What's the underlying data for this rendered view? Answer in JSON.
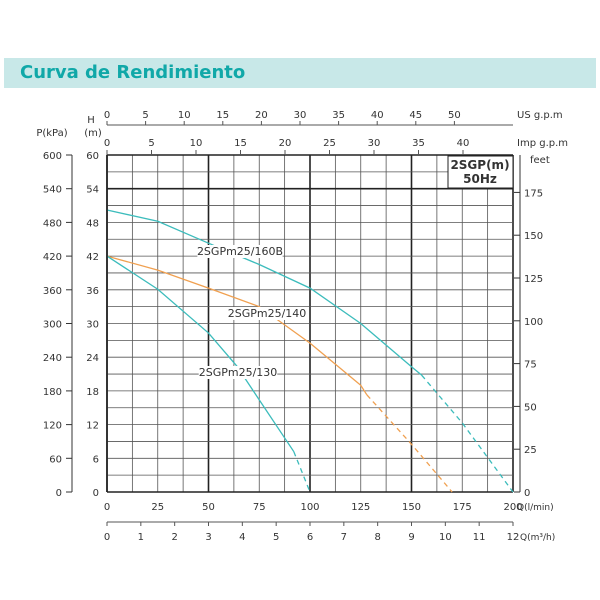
{
  "title": "Curva de Rendimiento",
  "chart_data": {
    "type": "line",
    "title": "Curva de Rendimiento",
    "model_box": [
      "2SGP(m)",
      "50Hz"
    ],
    "xlabel": "Q(l/min)",
    "xlabel2": "Q(m³/h)",
    "ylabel_left1": "P(kPa)",
    "ylabel_left2": [
      "H",
      "(m)"
    ],
    "ylabel_right": "feet",
    "top_axis1_label": "US  g.p.m",
    "top_axis2_label": "Imp  g.p.m",
    "xlim": [
      0,
      200
    ],
    "ylim": [
      0,
      60
    ],
    "x_ticks": [
      0,
      25,
      50,
      75,
      100,
      125,
      150,
      175,
      200
    ],
    "x2_ticks": [
      0,
      1,
      2,
      3,
      4,
      5,
      6,
      7,
      8,
      9,
      10,
      11,
      12
    ],
    "us_gpm_ticks": [
      "0",
      "5",
      "10",
      "15",
      "20",
      "30",
      "35",
      "40",
      "45",
      "50"
    ],
    "imp_gpm_ticks": [
      "0",
      "5",
      "10",
      "15",
      "20",
      "25",
      "30",
      "35",
      "40"
    ],
    "h_ticks": [
      0,
      6,
      12,
      18,
      24,
      30,
      36,
      42,
      48,
      54,
      60
    ],
    "p_ticks": [
      0,
      60,
      120,
      180,
      240,
      300,
      360,
      420,
      480,
      540,
      600
    ],
    "feet_ticks": [
      0,
      25,
      50,
      75,
      100,
      125,
      150,
      175
    ],
    "series": [
      {
        "name": "2SGPm25/160B",
        "color": "#3cbcbc",
        "points": [
          [
            0,
            50.2
          ],
          [
            25,
            48.2
          ],
          [
            50,
            44.3
          ],
          [
            75,
            40.5
          ],
          [
            100,
            36.3
          ],
          [
            125,
            30
          ],
          [
            150,
            22.3
          ],
          [
            155,
            20.8
          ]
        ],
        "dashed_points": [
          [
            155,
            20.8
          ],
          [
            175,
            12.3
          ],
          [
            200,
            0
          ]
        ]
      },
      {
        "name": "2SGPm25/140",
        "color": "#f0a050",
        "points": [
          [
            0,
            42
          ],
          [
            25,
            39.5
          ],
          [
            50,
            36.3
          ],
          [
            75,
            33
          ],
          [
            100,
            26.5
          ],
          [
            125,
            19
          ],
          [
            128,
            17.3
          ]
        ],
        "dashed_points": [
          [
            128,
            17.3
          ],
          [
            150,
            8.5
          ],
          [
            170,
            0
          ]
        ]
      },
      {
        "name": "2SGPm25/130",
        "color": "#3cbcbc",
        "points": [
          [
            0,
            42
          ],
          [
            25,
            36.1
          ],
          [
            50,
            28.3
          ],
          [
            64,
            22.4
          ],
          [
            75,
            16.4
          ],
          [
            92,
            7.2
          ]
        ],
        "dashed_points": [
          [
            92,
            7.2
          ],
          [
            100,
            0
          ]
        ]
      }
    ]
  }
}
